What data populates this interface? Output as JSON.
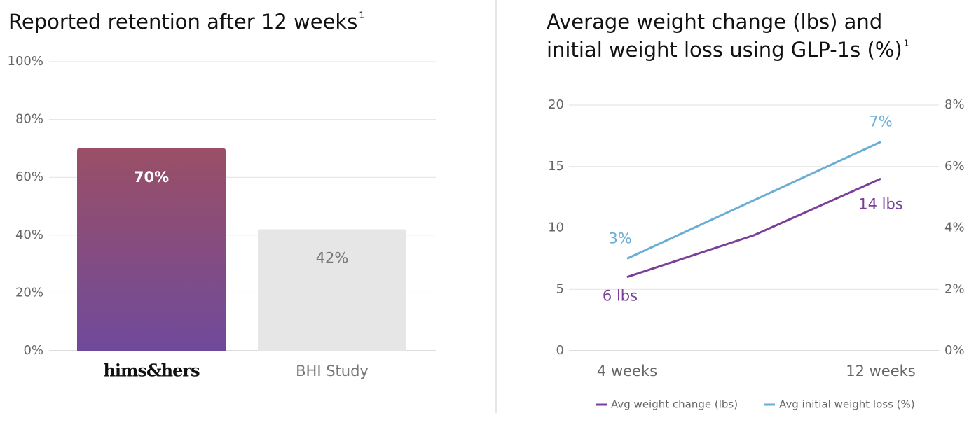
{
  "chart_data": [
    {
      "type": "bar",
      "title": "Reported retention after 12 weeks",
      "footnote": "1",
      "categories": [
        "hims&hers",
        "BHI Study"
      ],
      "values": [
        70,
        42
      ],
      "value_labels": [
        "70%",
        "42%"
      ],
      "colors": [
        {
          "top": "#9a4f66",
          "bottom": "#6f4a9b"
        },
        "#e6e6e6"
      ],
      "ylim": [
        0,
        100
      ],
      "yticks": [
        {
          "value": 0,
          "label": "0%"
        },
        {
          "value": 20,
          "label": "20%"
        },
        {
          "value": 40,
          "label": "40%"
        },
        {
          "value": 60,
          "label": "60%"
        },
        {
          "value": 80,
          "label": "80%"
        },
        {
          "value": 100,
          "label": "100%"
        }
      ],
      "grid": true
    },
    {
      "type": "line",
      "title": [
        "Average weight change (lbs) and",
        "initial weight loss using GLP-1s (%)"
      ],
      "footnote": "1",
      "categories": [
        "4 weeks",
        null,
        "12 weeks"
      ],
      "series": [
        {
          "name": "Avg weight change (lbs)",
          "color": "#7b3f98",
          "values": [
            6,
            9.4,
            14
          ],
          "value_labels": [
            "6 lbs",
            null,
            "14 lbs"
          ]
        },
        {
          "name": "Avg initial weight loss (%)",
          "color": "#6aaed6",
          "axis": "y2",
          "values": [
            3,
            4.9,
            6.8
          ],
          "value_labels": [
            "3%",
            null,
            "7%"
          ]
        }
      ],
      "ylim": [
        0,
        20
      ],
      "yticks": [
        0,
        5,
        10,
        15,
        20
      ],
      "y2lim": [
        0,
        8
      ],
      "y2ticks": [
        {
          "value": 0,
          "label": "0%"
        },
        {
          "value": 2,
          "label": "2%"
        },
        {
          "value": 4,
          "label": "4%"
        },
        {
          "value": 6,
          "label": "6%"
        },
        {
          "value": 8,
          "label": "8%"
        }
      ],
      "grid": true,
      "legend": "bottom"
    }
  ]
}
